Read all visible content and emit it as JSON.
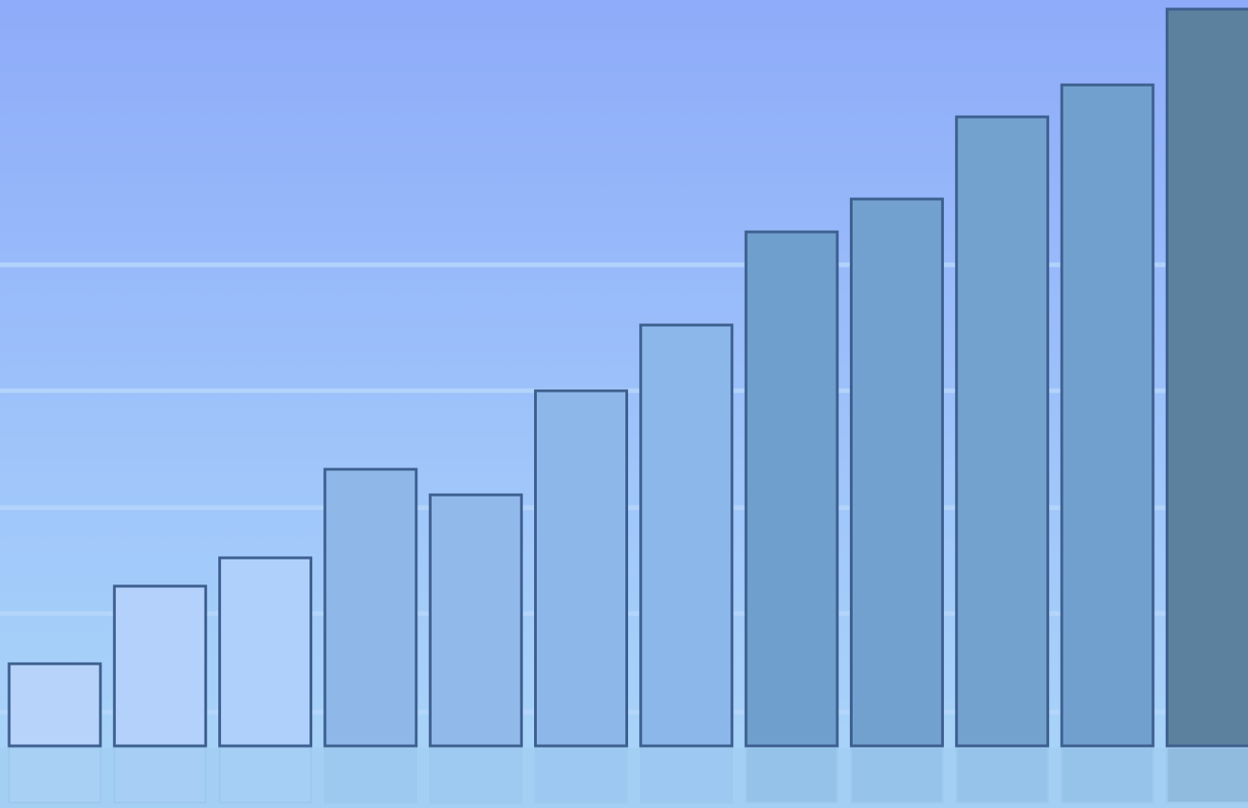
{
  "chart_data": {
    "type": "bar",
    "categories": [
      null,
      null,
      null,
      null,
      null,
      null,
      null,
      null,
      null,
      null,
      null,
      null
    ],
    "values": [
      90,
      175,
      206,
      303,
      275,
      389,
      461,
      563,
      599,
      689,
      724,
      807
    ],
    "colors": [
      "#b7d3f9",
      "#b3d1fb",
      "#b0d0fc",
      "#8fb8e8",
      "#91b9ea",
      "#8db6e9",
      "#8cb7ea",
      "#6f9fcc",
      "#72a1cf",
      "#73a2cf",
      "#72a0ce",
      "#5b819f"
    ],
    "ylim": [
      0,
      817
    ]
  }
}
